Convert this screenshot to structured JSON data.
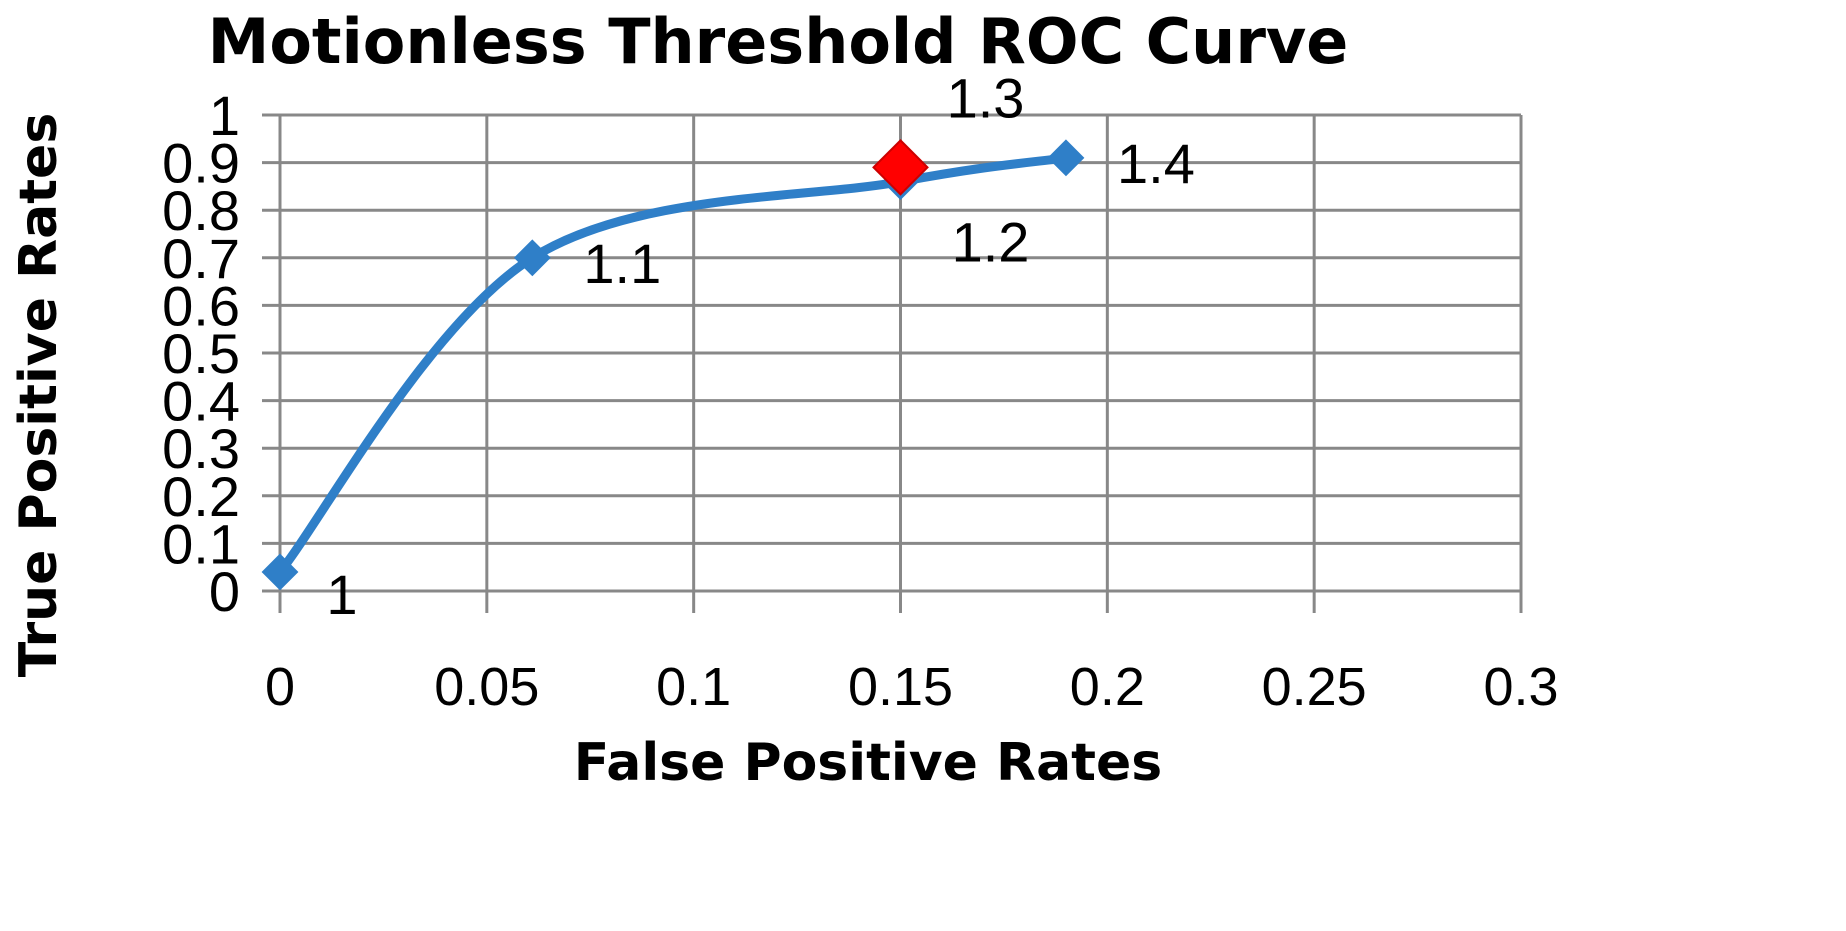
{
  "chart_data": {
    "type": "line",
    "title": "Motionless  Threshold  ROC Curve",
    "xlabel": "False Positive Rates",
    "ylabel": "True Positive Rates",
    "xlim": [
      0,
      0.3
    ],
    "ylim": [
      0,
      1
    ],
    "grid": true,
    "x_ticks": [
      "0",
      "0.05",
      "0.1",
      "0.15",
      "0.2",
      "0.25",
      "0.3"
    ],
    "y_ticks": [
      "0",
      "0.1",
      "0.2",
      "0.3",
      "0.4",
      "0.5",
      "0.6",
      "0.7",
      "0.8",
      "0.9",
      "1"
    ],
    "series": [
      {
        "name": "ROC",
        "color": "#2F7FC8",
        "points": [
          {
            "x": 0,
            "y": 0.04,
            "label": "1"
          },
          {
            "x": 0.061,
            "y": 0.7,
            "label": "1.1"
          },
          {
            "x": 0.15,
            "y": 0.86,
            "label": "1.2"
          },
          {
            "x": 0.15,
            "y": 0.89,
            "label": "1.3",
            "highlight": true
          },
          {
            "x": 0.19,
            "y": 0.91,
            "label": "1.4"
          }
        ]
      }
    ],
    "highlight_color": "#FF0000"
  }
}
